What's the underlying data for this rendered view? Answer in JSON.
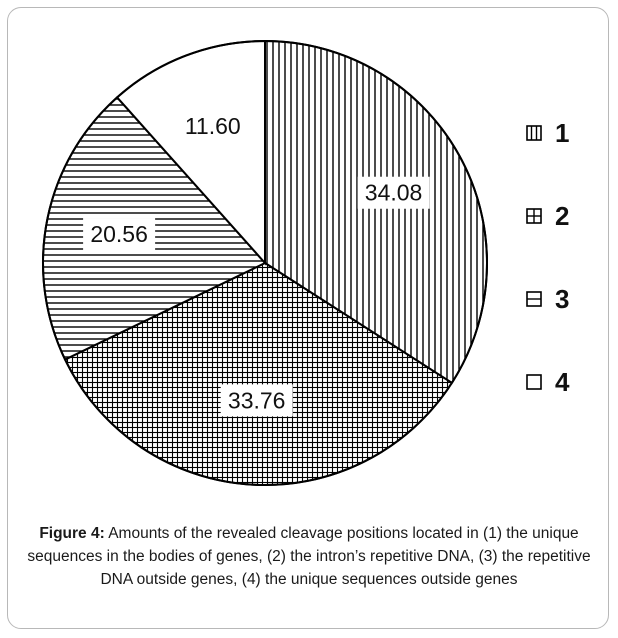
{
  "chart_data": {
    "type": "pie",
    "slices": [
      {
        "legend": "1",
        "value": 34.08,
        "label": "34.08",
        "pattern": "vertical-lines"
      },
      {
        "legend": "2",
        "value": 33.76,
        "label": "33.76",
        "pattern": "grid"
      },
      {
        "legend": "3",
        "value": 20.56,
        "label": "20.56",
        "pattern": "horizontal-lines"
      },
      {
        "legend": "4",
        "value": 11.6,
        "label": "11.60",
        "pattern": "none"
      }
    ],
    "start_angle": "12 o'clock",
    "direction": "clockwise",
    "legend_position": "right",
    "colors": {
      "stroke": "#000000",
      "fill": "#ffffff"
    }
  },
  "caption": {
    "label": "Figure 4:",
    "text": " Amounts of the revealed cleavage positions located in (1) the unique sequences in the bodies of genes, (2) the intron’s repetitive DNA, (3) the repetitive DNA outside genes, (4) the unique sequences outside genes"
  }
}
